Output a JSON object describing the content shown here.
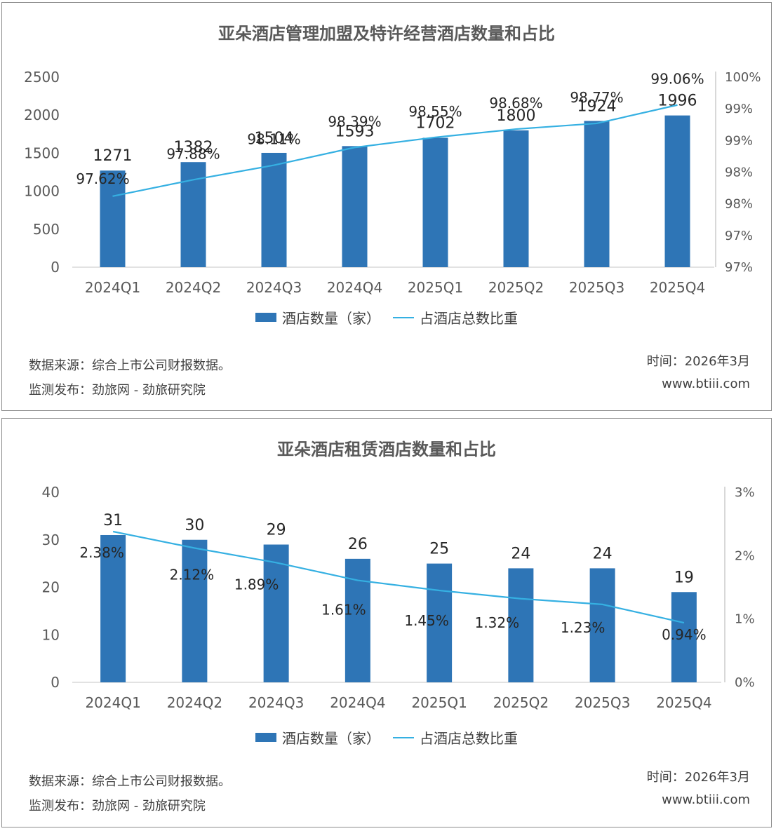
{
  "chart_data": [
    {
      "type": "bar",
      "title": "亚朵酒店管理加盟及特许经营酒店数量和占比",
      "categories": [
        "2024Q1",
        "2024Q2",
        "2024Q3",
        "2024Q4",
        "2025Q1",
        "2025Q2",
        "2025Q3",
        "2025Q4"
      ],
      "series": [
        {
          "name": "酒店数量（家）",
          "type": "bar",
          "axis": "left",
          "values": [
            1271,
            1382,
            1504,
            1593,
            1702,
            1800,
            1924,
            1996
          ],
          "labels": [
            "1271",
            "1382",
            "1504",
            "1593",
            "1702",
            "1800",
            "1924",
            "1996"
          ]
        },
        {
          "name": "占酒店总数比重",
          "type": "line",
          "axis": "right",
          "values": [
            97.62,
            97.88,
            98.11,
            98.39,
            98.55,
            98.68,
            98.77,
            99.06
          ],
          "labels": [
            "97.62%",
            "97.88%",
            "98.11%",
            "98.39%",
            "98.55%",
            "98.68%",
            "98.77%",
            "99.06%"
          ]
        }
      ],
      "left_axis": {
        "min": 0,
        "max": 2500,
        "ticks": [
          "0",
          "500",
          "1000",
          "1500",
          "2000",
          "2500"
        ]
      },
      "right_axis": {
        "min": 96.5,
        "max": 99.5,
        "ticks": [
          "97%",
          "97%",
          "98%",
          "98%",
          "99%",
          "99%",
          "100%"
        ]
      },
      "legend": "bottom"
    },
    {
      "type": "bar",
      "title": "亚朵酒店租赁酒店数量和占比",
      "categories": [
        "2024Q1",
        "2024Q2",
        "2024Q3",
        "2024Q4",
        "2025Q1",
        "2025Q2",
        "2025Q3",
        "2025Q4"
      ],
      "series": [
        {
          "name": "酒店数量（家）",
          "type": "bar",
          "axis": "left",
          "values": [
            31,
            30,
            29,
            26,
            25,
            24,
            24,
            19
          ],
          "labels": [
            "31",
            "30",
            "29",
            "26",
            "25",
            "24",
            "24",
            "19"
          ]
        },
        {
          "name": "占酒店总数比重",
          "type": "line",
          "axis": "right",
          "values": [
            2.38,
            2.12,
            1.89,
            1.61,
            1.45,
            1.32,
            1.23,
            0.94
          ],
          "labels": [
            "2.38%",
            "2.12%",
            "1.89%",
            "1.61%",
            "1.45%",
            "1.32%",
            "1.23%",
            "0.94%"
          ]
        }
      ],
      "left_axis": {
        "min": 0,
        "max": 40,
        "ticks": [
          "0",
          "10",
          "20",
          "30",
          "40"
        ]
      },
      "right_axis": {
        "min": 0,
        "max": 3,
        "ticks": [
          "0%",
          "1%",
          "2%",
          "3%"
        ]
      },
      "legend": "bottom"
    }
  ],
  "footer": {
    "source": "数据来源：综合上市公司财报数据。",
    "publisher": "监测发布：劲旅网 - 劲旅研究院",
    "time": "时间：2026年3月",
    "site": "www.btiii.com"
  },
  "colors": {
    "bar": "#2e75b6",
    "line": "#35b0e2",
    "axis": "#d9d9d9",
    "text": "#404040"
  }
}
